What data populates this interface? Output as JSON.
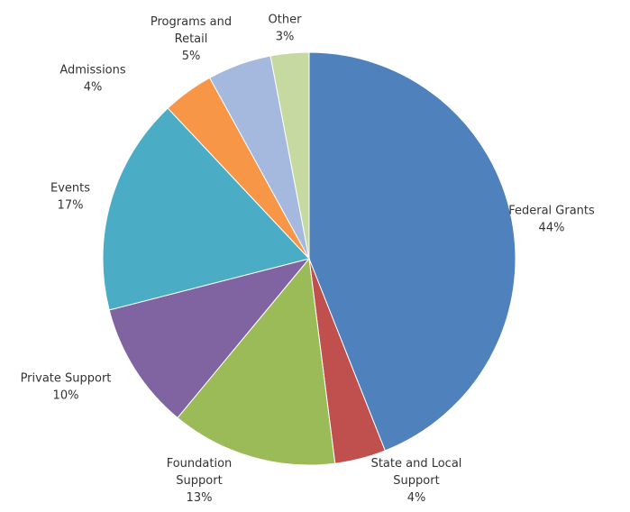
{
  "chart_data": {
    "type": "pie",
    "title": "",
    "start_angle_deg": 0,
    "direction": "clockwise",
    "slices": [
      {
        "label": [
          "Federal Grants"
        ],
        "value": 44,
        "value_label": "44%",
        "color": "#4F81BD"
      },
      {
        "label": [
          "State and Local",
          "Support"
        ],
        "value": 4,
        "value_label": "4%",
        "color": "#C0504D"
      },
      {
        "label": [
          "Foundation",
          "Support"
        ],
        "value": 13,
        "value_label": "13%",
        "color": "#9BBB59"
      },
      {
        "label": [
          "Private Support"
        ],
        "value": 10,
        "value_label": "10%",
        "color": "#8064A2"
      },
      {
        "label": [
          "Events"
        ],
        "value": 17,
        "value_label": "17%",
        "color": "#4BACC6"
      },
      {
        "label": [
          "Admissions"
        ],
        "value": 4,
        "value_label": "4%",
        "color": "#F79646"
      },
      {
        "label": [
          "Programs and",
          "Retail"
        ],
        "value": 5,
        "value_label": "5%",
        "color": "#A5B8DD"
      },
      {
        "label": [
          "Other"
        ],
        "value": 3,
        "value_label": "3%",
        "color": "#C6D9A0"
      }
    ],
    "legend": "none",
    "data_labels": "outside"
  }
}
